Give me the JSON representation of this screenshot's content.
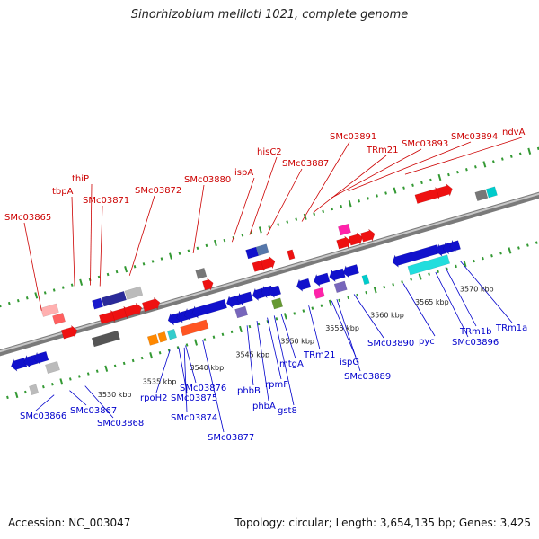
{
  "title": "Sinorhizobium meliloti 1021, complete genome",
  "footer": {
    "accession": "Accession: NC_003047",
    "summary": "Topology: circular; Length: 3,654,135 bp; Genes: 3,425"
  },
  "colors": {
    "top_label": "#cc0000",
    "bottom_label": "#0000cc",
    "axis": "#888888",
    "tick": "#339933"
  },
  "scale": {
    "unit": "kbp",
    "labels": [
      "3530 kbp",
      "3535 kbp",
      "3540 kbp",
      "3545 kbp",
      "3550 kbp",
      "3555 kbp",
      "3560 kbp",
      "3565 kbp",
      "3570 kbp"
    ]
  },
  "genes_top": [
    "SMc03865",
    "tbpA",
    "thiP",
    "SMc03871",
    "SMc03872",
    "SMc03880",
    "ispA",
    "hisC2",
    "SMc03887",
    "SMc03891",
    "TRm21",
    "SMc03893",
    "SMc03894",
    "ndvA"
  ],
  "genes_bottom": [
    "SMc03866",
    "SMc03867",
    "SMc03868",
    "rpoH2",
    "SMc03875",
    "SMc03876",
    "SMc03874",
    "SMc03877",
    "phbB",
    "phbA",
    "rpmF",
    "gst8",
    "mtgA",
    "TRm21",
    "ispG",
    "SMc03889",
    "SMc03890",
    "pyc",
    "SMc03896",
    "TRm1b",
    "TRm1a"
  ]
}
